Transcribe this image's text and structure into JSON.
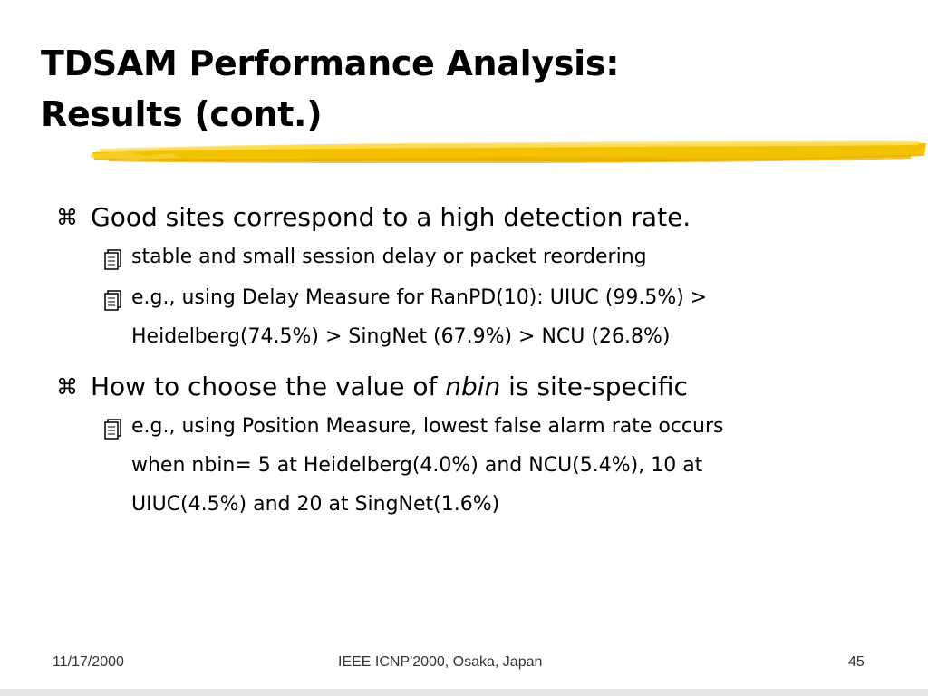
{
  "slide": {
    "title_line1": "TDSAM Performance Analysis:",
    "title_line2": "Results (cont.)",
    "accent_color": "#f2c200",
    "bullets": [
      {
        "text": "Good sites correspond to a high detection rate.",
        "icon": "command-key-icon",
        "sub": [
          {
            "text": "stable and small session delay or packet reordering",
            "icon": "notepad-icon"
          },
          {
            "line1": "e.g., using Delay Measure for RanPD(10): UIUC (99.5%) >",
            "line2": "Heidelberg(74.5%) > SingNet (67.9%) > NCU (26.8%)",
            "icon": "notepad-icon"
          }
        ]
      },
      {
        "pre": "How to choose the value of ",
        "emph": "nbin",
        "post": " is site-specific",
        "icon": "command-key-icon",
        "sub": [
          {
            "line1": "e.g., using Position Measure, lowest false alarm rate occurs",
            "line2": "when nbin= 5 at Heidelberg(4.0%) and NCU(5.4%), 10 at",
            "line3": "UIUC(4.5%) and 20 at SingNet(1.6%)",
            "icon": "notepad-icon"
          }
        ]
      }
    ]
  },
  "footer": {
    "date": "11/17/2000",
    "conference": "IEEE ICNP'2000, Osaka, Japan",
    "page": "45"
  }
}
